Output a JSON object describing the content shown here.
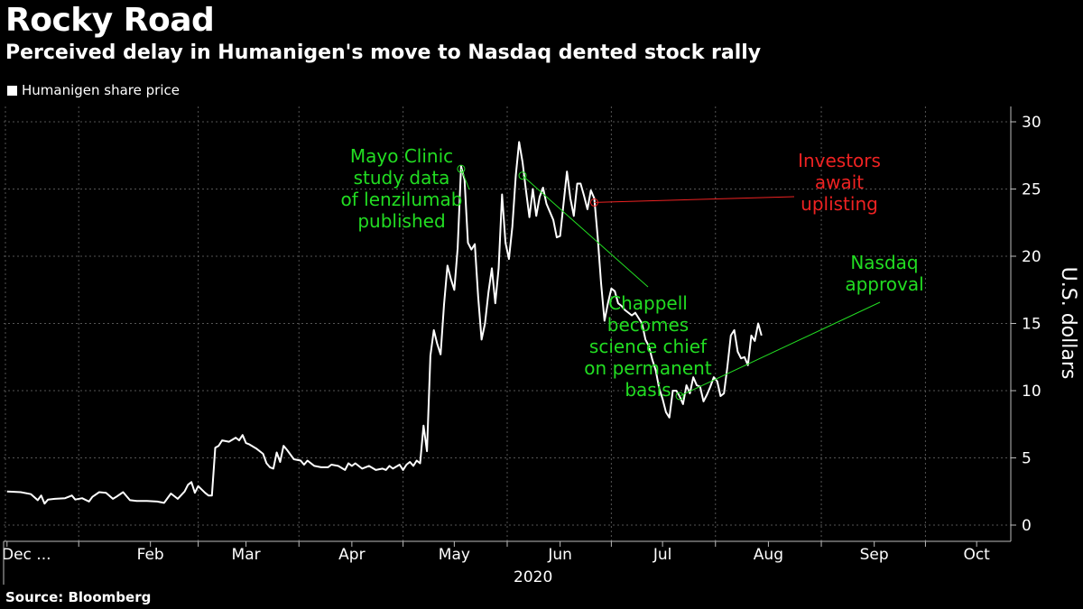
{
  "title": "Rocky Road",
  "subtitle": "Perceived delay in Humanigen's move to Nasdaq dented stock rally",
  "legend_label": "Humanigen share price",
  "source": "Source: Bloomberg",
  "colors": {
    "background": "#000000",
    "line": "#ffffff",
    "positive": "#22dd22",
    "negative": "#ee2222",
    "grid": "#555555"
  },
  "chart_data": {
    "type": "line",
    "title": "Rocky Road",
    "subtitle": "Perceived delay in Humanigen's move to Nasdaq dented stock rally",
    "xlabel": "2020",
    "ylabel": "U.S. dollars",
    "ylim": [
      0,
      30
    ],
    "yticks": [
      0,
      5,
      10,
      15,
      20,
      25,
      30
    ],
    "grid": true,
    "legend": "top-left",
    "x_ticks": [
      {
        "label": "Dec ...",
        "day": 0
      },
      {
        "label": "Feb",
        "day": 42
      },
      {
        "label": "Mar",
        "day": 70
      },
      {
        "label": "Apr",
        "day": 101
      },
      {
        "label": "May",
        "day": 131
      },
      {
        "label": "Jun",
        "day": 162
      },
      {
        "label": "Jul",
        "day": 192
      },
      {
        "label": "Aug",
        "day": 223
      },
      {
        "label": "Sep",
        "day": 254
      },
      {
        "label": "Oct",
        "day": 284
      }
    ],
    "x_range_days": [
      -1,
      294
    ],
    "series": [
      {
        "name": "Humanigen share price",
        "points": [
          [
            0,
            2.5
          ],
          [
            4,
            2.45
          ],
          [
            7,
            2.3
          ],
          [
            9,
            1.85
          ],
          [
            10,
            2.2
          ],
          [
            11,
            1.6
          ],
          [
            12,
            1.9
          ],
          [
            14,
            1.95
          ],
          [
            17,
            2.0
          ],
          [
            19,
            2.2
          ],
          [
            20,
            1.9
          ],
          [
            22,
            2.0
          ],
          [
            24,
            1.75
          ],
          [
            25,
            2.1
          ],
          [
            27,
            2.45
          ],
          [
            29,
            2.4
          ],
          [
            31,
            1.95
          ],
          [
            32,
            2.1
          ],
          [
            34,
            2.45
          ],
          [
            36,
            1.85
          ],
          [
            38,
            1.8
          ],
          [
            41,
            1.8
          ],
          [
            44,
            1.75
          ],
          [
            46,
            1.65
          ],
          [
            48,
            2.35
          ],
          [
            50,
            1.95
          ],
          [
            52,
            2.5
          ],
          [
            53,
            3.0
          ],
          [
            54,
            3.2
          ],
          [
            55,
            2.4
          ],
          [
            56,
            2.9
          ],
          [
            58,
            2.4
          ],
          [
            59,
            2.2
          ],
          [
            60,
            2.2
          ],
          [
            61,
            5.75
          ],
          [
            62,
            5.9
          ],
          [
            63,
            6.3
          ],
          [
            65,
            6.2
          ],
          [
            67,
            6.5
          ],
          [
            68,
            6.3
          ],
          [
            69,
            6.7
          ],
          [
            70,
            6.1
          ],
          [
            71,
            6.0
          ],
          [
            73,
            5.7
          ],
          [
            75,
            5.3
          ],
          [
            76,
            4.6
          ],
          [
            77,
            4.3
          ],
          [
            78,
            4.2
          ],
          [
            79,
            5.4
          ],
          [
            80,
            4.7
          ],
          [
            81,
            5.9
          ],
          [
            82,
            5.6
          ],
          [
            84,
            4.9
          ],
          [
            86,
            4.8
          ],
          [
            87,
            4.5
          ],
          [
            88,
            4.8
          ],
          [
            90,
            4.4
          ],
          [
            92,
            4.3
          ],
          [
            94,
            4.3
          ],
          [
            95,
            4.5
          ],
          [
            97,
            4.4
          ],
          [
            99,
            4.1
          ],
          [
            100,
            4.6
          ],
          [
            101,
            4.4
          ],
          [
            102,
            4.6
          ],
          [
            104,
            4.2
          ],
          [
            106,
            4.4
          ],
          [
            108,
            4.1
          ],
          [
            110,
            4.2
          ],
          [
            111,
            4.1
          ],
          [
            112,
            4.4
          ],
          [
            113,
            4.2
          ],
          [
            115,
            4.5
          ],
          [
            116,
            4.1
          ],
          [
            117,
            4.5
          ],
          [
            118,
            4.7
          ],
          [
            119,
            4.4
          ],
          [
            120,
            4.8
          ],
          [
            121,
            4.6
          ],
          [
            122,
            7.4
          ],
          [
            123,
            5.5
          ],
          [
            124,
            12.6
          ],
          [
            125,
            14.5
          ],
          [
            126,
            13.5
          ],
          [
            127,
            12.7
          ],
          [
            128,
            16.4
          ],
          [
            129,
            19.3
          ],
          [
            130,
            18.3
          ],
          [
            131,
            17.5
          ],
          [
            132,
            20.6
          ],
          [
            133,
            26.7
          ],
          [
            134,
            25.7
          ],
          [
            135,
            21.0
          ],
          [
            136,
            20.5
          ],
          [
            137,
            20.9
          ],
          [
            138,
            17.0
          ],
          [
            139,
            13.8
          ],
          [
            140,
            15.0
          ],
          [
            141,
            17.3
          ],
          [
            142,
            19.1
          ],
          [
            143,
            16.5
          ],
          [
            144,
            19.1
          ],
          [
            145,
            24.6
          ],
          [
            146,
            21.0
          ],
          [
            147,
            19.8
          ],
          [
            148,
            22.2
          ],
          [
            149,
            26.0
          ],
          [
            150,
            28.5
          ],
          [
            151,
            27.0
          ],
          [
            152,
            24.9
          ],
          [
            153,
            22.9
          ],
          [
            154,
            25.0
          ],
          [
            155,
            23.0
          ],
          [
            156,
            24.4
          ],
          [
            157,
            25.1
          ],
          [
            158,
            23.9
          ],
          [
            159,
            23.3
          ],
          [
            160,
            22.7
          ],
          [
            161,
            21.4
          ],
          [
            162,
            21.5
          ],
          [
            163,
            23.9
          ],
          [
            164,
            26.3
          ],
          [
            165,
            24.3
          ],
          [
            166,
            23.0
          ],
          [
            167,
            25.4
          ],
          [
            168,
            25.4
          ],
          [
            169,
            24.5
          ],
          [
            170,
            23.5
          ],
          [
            171,
            24.9
          ],
          [
            172,
            24.3
          ],
          [
            173,
            21.4
          ],
          [
            174,
            18.0
          ],
          [
            175,
            15.2
          ],
          [
            176,
            16.5
          ],
          [
            177,
            17.6
          ],
          [
            178,
            17.4
          ],
          [
            179,
            16.5
          ],
          [
            180,
            16.3
          ],
          [
            181,
            16.0
          ],
          [
            182,
            15.8
          ],
          [
            183,
            15.6
          ],
          [
            184,
            15.8
          ],
          [
            185,
            15.4
          ],
          [
            186,
            15.0
          ],
          [
            187,
            13.8
          ],
          [
            188,
            13.3
          ],
          [
            189,
            12.3
          ],
          [
            190,
            11.5
          ],
          [
            191,
            10.2
          ],
          [
            192,
            9.4
          ],
          [
            193,
            8.4
          ],
          [
            194,
            8.0
          ],
          [
            195,
            10.0
          ],
          [
            196,
            10.0
          ],
          [
            197,
            9.6
          ],
          [
            198,
            9.0
          ],
          [
            199,
            10.4
          ],
          [
            200,
            9.8
          ],
          [
            201,
            11.0
          ],
          [
            202,
            10.4
          ],
          [
            203,
            10.3
          ],
          [
            204,
            9.2
          ],
          [
            205,
            9.7
          ],
          [
            206,
            10.3
          ],
          [
            207,
            11.0
          ],
          [
            208,
            10.7
          ],
          [
            209,
            9.6
          ],
          [
            210,
            9.8
          ],
          [
            211,
            11.8
          ],
          [
            212,
            14.1
          ],
          [
            213,
            14.5
          ],
          [
            214,
            12.9
          ],
          [
            215,
            12.4
          ],
          [
            216,
            12.5
          ],
          [
            217,
            11.9
          ],
          [
            218,
            14.1
          ],
          [
            219,
            13.7
          ],
          [
            220,
            15.0
          ],
          [
            221,
            14.1
          ]
        ]
      }
    ],
    "annotations": [
      {
        "text": [
          "Mayo Clinic",
          "study data",
          "of lenzilumab",
          "published"
        ],
        "color": "positive",
        "anchor_day": 133,
        "anchor_value": 26.5
      },
      {
        "text": [
          "Chappell",
          "becomes",
          "science chief",
          "on permanent",
          "basis"
        ],
        "color": "positive",
        "anchor_day": 151,
        "anchor_value": 26.0
      },
      {
        "text": [
          "Investors",
          "await",
          "uplisting"
        ],
        "color": "negative",
        "anchor_day": 172,
        "anchor_value": 24.0
      },
      {
        "text": [
          "Nasdaq",
          "approval"
        ],
        "color": "positive",
        "anchor_day": 197,
        "anchor_value": 9.6
      }
    ]
  }
}
